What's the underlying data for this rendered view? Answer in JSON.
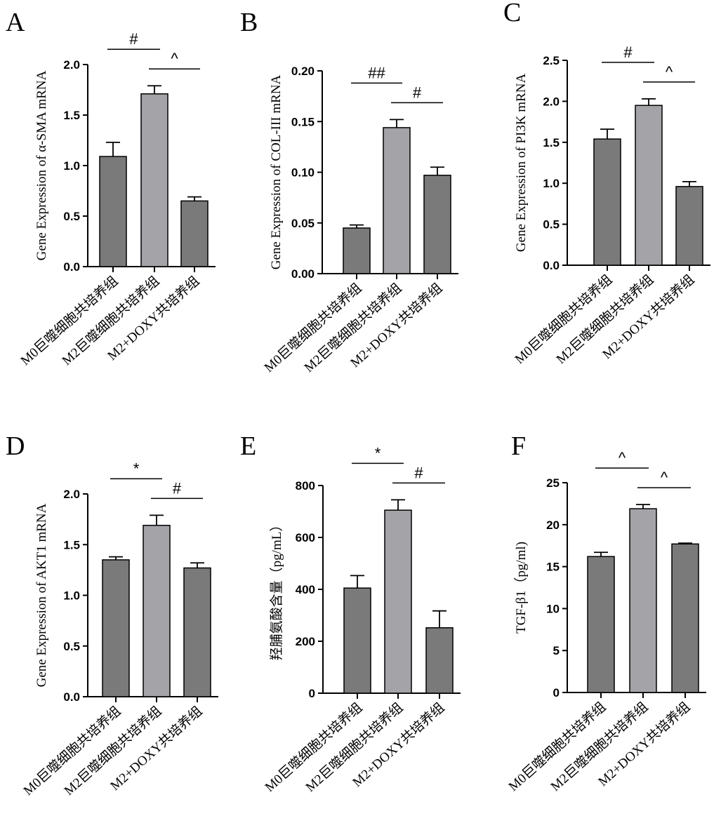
{
  "figure": {
    "colors": {
      "dark_bar": "#7a7a7a",
      "light_bar": "#a3a3a8",
      "axis": "#000000"
    }
  },
  "chart_data": [
    {
      "panel": "A",
      "type": "bar",
      "categories": [
        "M0巨噬细胞共培养组",
        "M2巨噬细胞共培养组",
        "M2+DOXY共培养组"
      ],
      "values": [
        1.09,
        1.71,
        0.65
      ],
      "errors": [
        0.14,
        0.08,
        0.04
      ],
      "ylabel": "Gene Expression of α-SMA mRNA",
      "ylim": [
        0,
        2.0
      ],
      "yticks": [
        "0.0",
        "0.5",
        "1.0",
        "1.5",
        "2.0"
      ],
      "significance": [
        {
          "from": 0,
          "to": 1,
          "label": "#"
        },
        {
          "from": 1,
          "to": 2,
          "label": "^"
        }
      ]
    },
    {
      "panel": "B",
      "type": "bar",
      "categories": [
        "M0巨噬细胞共培养组",
        "M2巨噬细胞共培养组",
        "M2+DOXY共培养组"
      ],
      "values": [
        0.045,
        0.144,
        0.097
      ],
      "errors": [
        0.003,
        0.008,
        0.008
      ],
      "ylabel": "Gene Expression of COL-III mRNA",
      "ylim": [
        0,
        0.2
      ],
      "yticks": [
        "0.00",
        "0.05",
        "0.10",
        "0.15",
        "0.20"
      ],
      "significance": [
        {
          "from": 0,
          "to": 1,
          "label": "##"
        },
        {
          "from": 1,
          "to": 2,
          "label": "#"
        }
      ]
    },
    {
      "panel": "C",
      "type": "bar",
      "categories": [
        "M0巨噬细胞共培养组",
        "M2巨噬细胞共培养组",
        "M2+DOXY共培养组"
      ],
      "values": [
        1.54,
        1.95,
        0.96
      ],
      "errors": [
        0.12,
        0.08,
        0.06
      ],
      "ylabel": "Gene Expression of PI3K mRNA",
      "ylim": [
        0,
        2.5
      ],
      "yticks": [
        "0.0",
        "0.5",
        "1.0",
        "1.5",
        "2.0",
        "2.5"
      ],
      "significance": [
        {
          "from": 0,
          "to": 1,
          "label": "#"
        },
        {
          "from": 1,
          "to": 2,
          "label": "^"
        }
      ]
    },
    {
      "panel": "D",
      "type": "bar",
      "categories": [
        "M0巨噬细胞共培养组",
        "M2巨噬细胞共培养组",
        "M2+DOXY共培养组"
      ],
      "values": [
        1.35,
        1.69,
        1.27
      ],
      "errors": [
        0.03,
        0.1,
        0.05
      ],
      "ylabel": "Gene Expression of AKT1 mRNA",
      "ylim": [
        0,
        2.0
      ],
      "yticks": [
        "0.0",
        "0.5",
        "1.0",
        "1.5",
        "2.0"
      ],
      "significance": [
        {
          "from": 0,
          "to": 1,
          "label": "*"
        },
        {
          "from": 1,
          "to": 2,
          "label": "#"
        }
      ]
    },
    {
      "panel": "E",
      "type": "bar",
      "categories": [
        "M0巨噬细胞共培养组",
        "M2巨噬细胞共培养组",
        "M2+DOXY共培养组"
      ],
      "values": [
        405,
        705,
        252
      ],
      "errors": [
        48,
        40,
        65
      ],
      "ylabel": "羟脯氨酸含量（pg/mL）",
      "ylim": [
        0,
        800
      ],
      "yticks": [
        "0",
        "200",
        "400",
        "600",
        "800"
      ],
      "significance": [
        {
          "from": 0,
          "to": 1,
          "label": "*"
        },
        {
          "from": 1,
          "to": 2,
          "label": "#"
        }
      ]
    },
    {
      "panel": "F",
      "type": "bar",
      "categories": [
        "M0巨噬细胞共培养组",
        "M2巨噬细胞共培养组",
        "M2+DOXY共培养组"
      ],
      "values": [
        16.2,
        21.9,
        17.7
      ],
      "errors": [
        0.5,
        0.5,
        0.1
      ],
      "ylabel": "TGF-β1（pg/ml)",
      "ylim": [
        0,
        25
      ],
      "yticks": [
        "0",
        "5",
        "10",
        "15",
        "20",
        "25"
      ],
      "significance": [
        {
          "from": 0,
          "to": 1,
          "label": "^"
        },
        {
          "from": 1,
          "to": 2,
          "label": "^"
        }
      ]
    }
  ]
}
